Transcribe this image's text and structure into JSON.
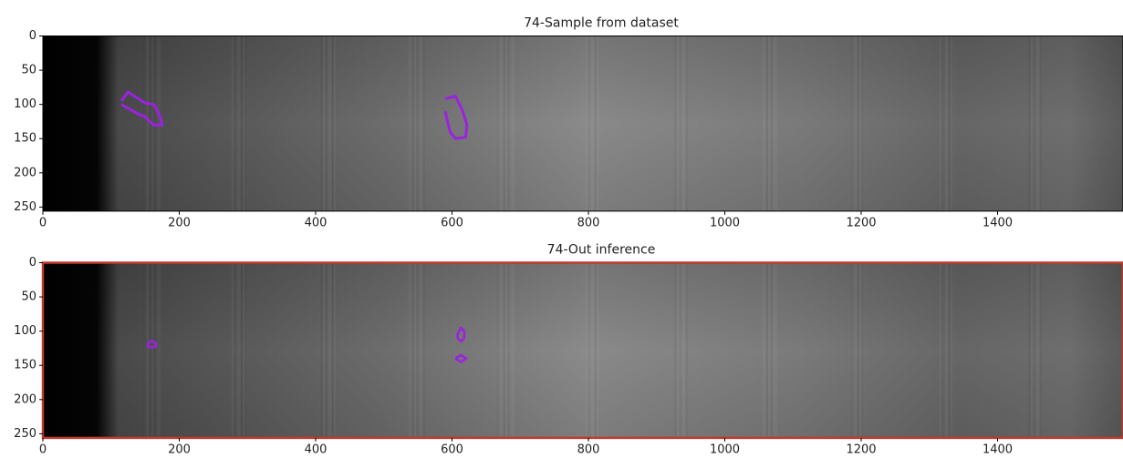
{
  "chart_data": [
    {
      "type": "image",
      "title": "74-Sample from dataset",
      "xlim": [
        0,
        1600
      ],
      "ylim": [
        256,
        0
      ],
      "xticks": [
        0,
        200,
        400,
        600,
        800,
        1000,
        1200,
        1400
      ],
      "yticks": [
        0,
        50,
        100,
        150,
        200,
        250
      ],
      "contours": [
        {
          "color": "#9b22e0",
          "x": [
            115,
            125,
            150,
            163,
            172,
            175,
            162,
            150,
            140,
            115
          ],
          "y": [
            95,
            82,
            98,
            100,
            118,
            130,
            130,
            118,
            114,
            100
          ]
        },
        {
          "color": "#9b22e0",
          "x": [
            590,
            605,
            615,
            622,
            620,
            605,
            597,
            590
          ],
          "y": [
            92,
            88,
            108,
            130,
            148,
            150,
            140,
            110
          ]
        }
      ]
    },
    {
      "type": "image",
      "title": "74-Out inference",
      "xlim": [
        0,
        1600
      ],
      "ylim": [
        256,
        0
      ],
      "xticks": [
        0,
        200,
        400,
        600,
        800,
        1000,
        1200,
        1400
      ],
      "yticks": [
        0,
        50,
        100,
        150,
        200,
        250
      ],
      "frame_color": "#c0392b",
      "contours": [
        {
          "color": "#9b22e0",
          "x": [
            154,
            160,
            166,
            166,
            160,
            154,
            154
          ],
          "y": [
            118,
            114,
            118,
            122,
            124,
            122,
            118
          ]
        },
        {
          "color": "#9b22e0",
          "x": [
            608,
            613,
            618,
            618,
            613,
            608,
            608
          ],
          "y": [
            105,
            95,
            100,
            110,
            115,
            110,
            105
          ]
        },
        {
          "color": "#9b22e0",
          "x": [
            605,
            613,
            621,
            613,
            605
          ],
          "y": [
            140,
            135,
            140,
            145,
            140
          ]
        }
      ]
    }
  ]
}
